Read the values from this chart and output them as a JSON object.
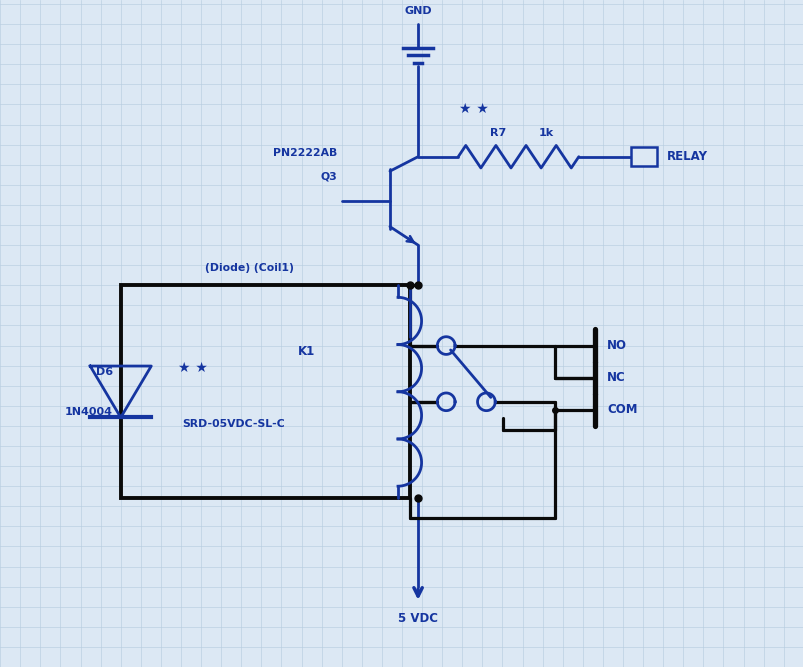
{
  "bg_color": "#dce8f4",
  "grid_color": "#b8cde0",
  "line_color": "#1535a0",
  "black_line": "#0a0a0a",
  "labels": {
    "gnd": "GND",
    "transistor": "PN2222AB",
    "q3": "Q3",
    "r7": "R7",
    "r7val": "1k",
    "relay_label": "RELAY",
    "diode_coil": "(Diode) (Coil1)",
    "k1": "K1",
    "srd": "SRD-05VDC-SL-C",
    "d6": "D6",
    "n4004": "1N4004",
    "no": "NO",
    "nc": "NC",
    "com": "COM",
    "vdc": "5 VDC",
    "stars_tr": "★ ★",
    "stars_d": "★ ★"
  }
}
